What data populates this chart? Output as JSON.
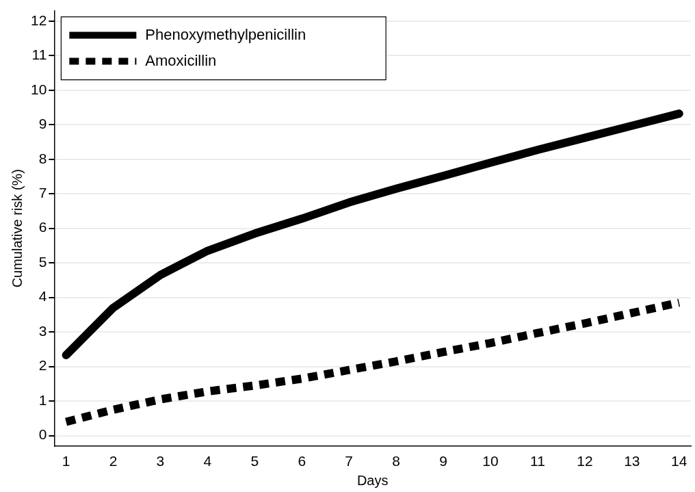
{
  "chart_data": {
    "type": "line",
    "xlabel": "Days",
    "ylabel": "Cumulative risk (%)",
    "x": [
      1,
      2,
      3,
      4,
      5,
      6,
      7,
      8,
      9,
      10,
      11,
      12,
      13,
      14
    ],
    "series": [
      {
        "name": "Phenoxymethylpenicillin",
        "color": "#000000",
        "line_style": "solid",
        "values": [
          2.33,
          3.7,
          4.65,
          5.35,
          5.85,
          6.28,
          6.75,
          7.15,
          7.52,
          7.9,
          8.27,
          8.62,
          8.97,
          9.32
        ]
      },
      {
        "name": "Amoxicillin",
        "color": "#000000",
        "line_style": "dashed",
        "values": [
          0.4,
          0.75,
          1.05,
          1.28,
          1.45,
          1.65,
          1.9,
          2.15,
          2.42,
          2.68,
          2.97,
          3.25,
          3.55,
          3.85
        ]
      }
    ],
    "xlim": [
      0.75,
      14.25
    ],
    "xticks": [
      1,
      2,
      3,
      4,
      5,
      6,
      7,
      8,
      9,
      10,
      11,
      12,
      13,
      14
    ],
    "ylim": [
      -0.3,
      12.3
    ],
    "yticks": [
      0,
      1,
      2,
      3,
      4,
      5,
      6,
      7,
      8,
      9,
      10,
      11,
      12
    ],
    "grid": "y",
    "legend": "top left",
    "marker": "none"
  }
}
